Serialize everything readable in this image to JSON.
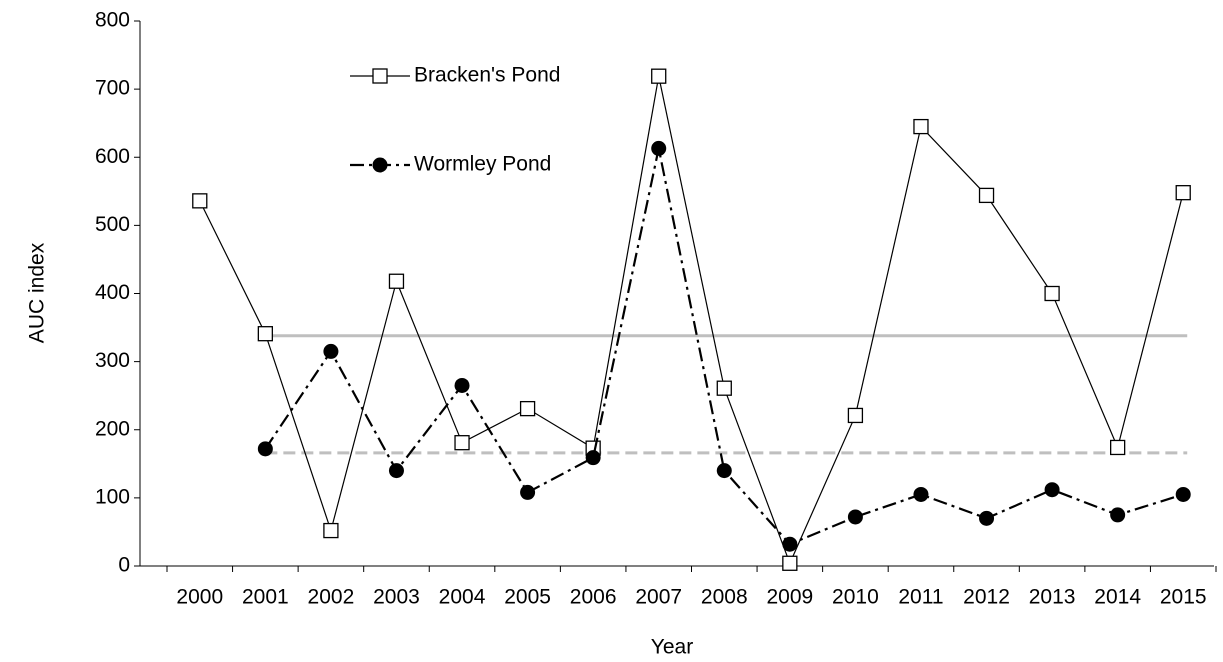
{
  "chart_data": {
    "type": "line",
    "x_label": "Year",
    "y_label": "AUC index",
    "categories": [
      "2000",
      "2001",
      "2002",
      "2003",
      "2004",
      "2005",
      "2006",
      "2007",
      "2008",
      "2009",
      "2010",
      "2011",
      "2012",
      "2013",
      "2014",
      "2015"
    ],
    "series": [
      {
        "name": "Bracken's Pond",
        "color": "#000000",
        "marker": "square",
        "dash": "solid",
        "values": [
          536,
          341,
          52,
          418,
          181,
          231,
          173,
          719,
          261,
          4,
          221,
          645,
          544,
          400,
          174,
          548
        ]
      },
      {
        "name": "Wormley Pond",
        "color": "#000000",
        "marker": "circle",
        "dash": "dashdot",
        "values": [
          null,
          172,
          315,
          140,
          265,
          108,
          159,
          613,
          140,
          32,
          72,
          105,
          70,
          112,
          75,
          105
        ]
      }
    ],
    "reference_lines": [
      {
        "value": 338,
        "color": "#bfbfbf",
        "dash": "solid"
      },
      {
        "value": 166,
        "color": "#bfbfbf",
        "dash": "dashed"
      }
    ],
    "ylim": [
      0,
      800
    ],
    "yticks": [
      0,
      100,
      200,
      300,
      400,
      500,
      600,
      700,
      800
    ],
    "grid": false,
    "legend": "top-left"
  }
}
